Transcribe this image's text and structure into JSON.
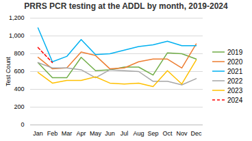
{
  "chart_data": {
    "type": "line",
    "title": "PRRS PCR testing at the ADDL by month, 2019-2024",
    "ylabel": "Test Count",
    "categories": [
      "Jan",
      "Feb",
      "Mar",
      "Apr",
      "May",
      "Jun",
      "Jul",
      "Aug",
      "Sep",
      "Oct",
      "Nov",
      "Dec"
    ],
    "series": [
      {
        "name": "2019",
        "color": "#70ad47",
        "line_style": "solid",
        "values": [
          700,
          530,
          530,
          760,
          610,
          620,
          650,
          650,
          560,
          810,
          800,
          740
        ]
      },
      {
        "name": "2020",
        "color": "#ed7d31",
        "line_style": "solid",
        "values": [
          760,
          630,
          640,
          820,
          780,
          630,
          640,
          710,
          740,
          740,
          640,
          910
        ]
      },
      {
        "name": "2021",
        "color": "#00b0f0",
        "line_style": "solid",
        "values": [
          1090,
          710,
          770,
          960,
          790,
          800,
          840,
          880,
          900,
          940,
          890,
          890
        ]
      },
      {
        "name": "2022",
        "color": "#a6a6a6",
        "line_style": "solid",
        "values": [
          700,
          640,
          640,
          620,
          530,
          620,
          610,
          600,
          490,
          490,
          450,
          520
        ]
      },
      {
        "name": "2023",
        "color": "#ffc000",
        "line_style": "solid",
        "values": [
          590,
          470,
          500,
          500,
          540,
          470,
          460,
          470,
          430,
          610,
          460,
          730
        ]
      },
      {
        "name": "2024",
        "color": "#ff0000",
        "line_style": "dashed",
        "values": [
          870,
          700,
          null,
          null,
          null,
          null,
          null,
          null,
          null,
          null,
          null,
          null
        ]
      }
    ],
    "ylim": [
      0,
      1200
    ],
    "yticks": [
      0,
      200,
      400,
      600,
      800,
      1000,
      1200
    ],
    "grid": true,
    "legend": "right"
  }
}
